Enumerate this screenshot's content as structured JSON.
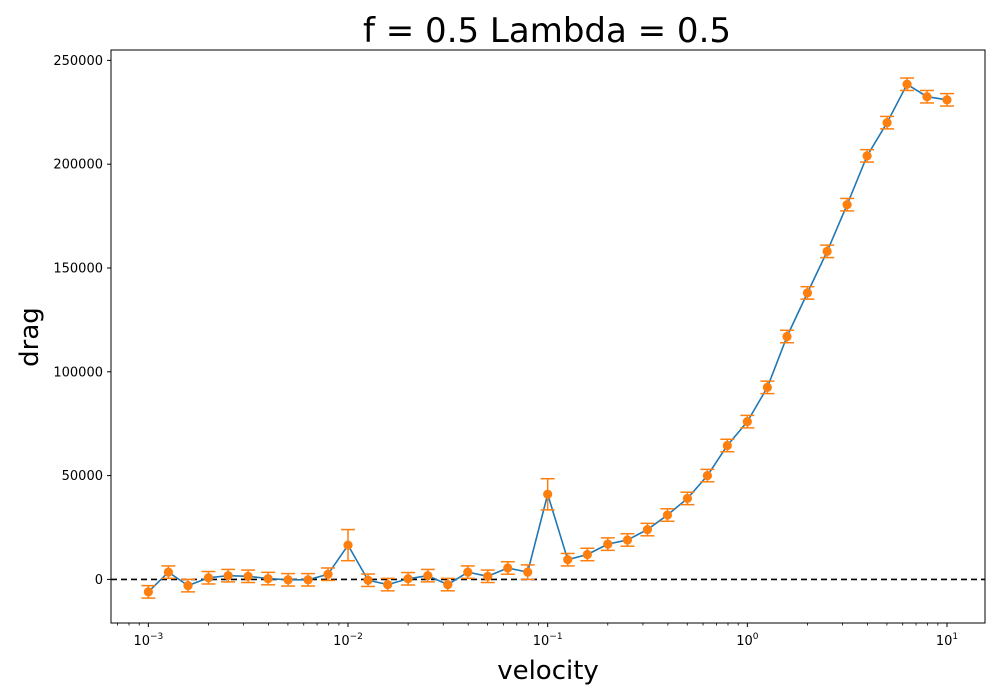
{
  "chart_data": {
    "type": "line",
    "title": "f = 0.5 Lambda = 0.5",
    "xlabel": "velocity",
    "ylabel": "drag",
    "xscale": "log",
    "xlim": [
      0.00065,
      15.5
    ],
    "ylim": [
      -21000,
      255000
    ],
    "grid": false,
    "reference_line": {
      "y": 0,
      "style": "dashed",
      "color": "#000000"
    },
    "colors": {
      "line": "#1f77b4",
      "markers": "#ff7f0e",
      "errorbars": "#ff7f0e"
    },
    "yticks": [
      0,
      50000,
      100000,
      150000,
      200000,
      250000
    ],
    "yticklabels": [
      "0",
      "50000",
      "100000",
      "150000",
      "200000",
      "250000"
    ],
    "xticks": [
      0.001,
      0.01,
      0.1,
      1,
      10
    ],
    "xticklabels": [
      {
        "base": "10",
        "exp": "−3"
      },
      {
        "base": "10",
        "exp": "−2"
      },
      {
        "base": "10",
        "exp": "−1"
      },
      {
        "base": "10",
        "exp": "0"
      },
      {
        "base": "10",
        "exp": "1"
      }
    ],
    "series": [
      {
        "x": [
          0.001,
          0.00126,
          0.00158,
          0.002,
          0.00251,
          0.00316,
          0.00398,
          0.00501,
          0.00631,
          0.00794,
          0.01,
          0.0126,
          0.0158,
          0.02,
          0.0251,
          0.0316,
          0.0398,
          0.0501,
          0.0631,
          0.0794,
          0.1,
          0.126,
          0.158,
          0.2,
          0.251,
          0.316,
          0.398,
          0.501,
          0.631,
          0.794,
          1,
          1.26,
          1.58,
          2,
          2.51,
          3.16,
          3.98,
          5.01,
          6.31,
          7.94,
          10
        ],
        "y": [
          -6000,
          3500,
          -3000,
          800,
          1800,
          1500,
          400,
          -200,
          -200,
          2500,
          16500,
          -400,
          -2500,
          300,
          1800,
          -2500,
          3500,
          1500,
          5500,
          3500,
          41000,
          9500,
          12000,
          17000,
          19000,
          24000,
          31000,
          39000,
          50000,
          64500,
          76000,
          92500,
          117000,
          138000,
          158000,
          180500,
          204000,
          220000,
          238500,
          232500,
          231000
        ],
        "error": [
          3000,
          3000,
          3000,
          3000,
          3000,
          3000,
          3000,
          3000,
          3000,
          3000,
          7500,
          3000,
          3000,
          3000,
          3000,
          3000,
          3000,
          3000,
          3000,
          3500,
          7500,
          3000,
          3000,
          3000,
          3000,
          3000,
          3000,
          3000,
          3000,
          3000,
          3000,
          3000,
          3000,
          3000,
          3000,
          3000,
          3000,
          3000,
          3000,
          3000,
          3000
        ]
      }
    ]
  }
}
